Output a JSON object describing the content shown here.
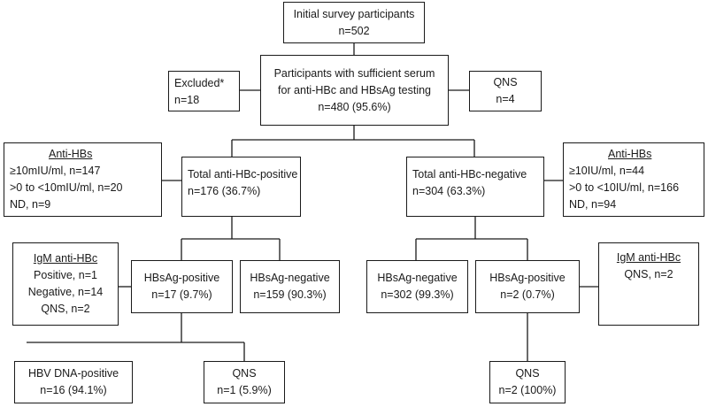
{
  "initial": {
    "title": "Initial survey participants",
    "n": "n=502"
  },
  "excluded": {
    "title": "Excluded*",
    "n": "n=18"
  },
  "sufficient": {
    "line1": "Participants with sufficient serum",
    "line2": "for anti-HBc and HBsAg testing",
    "n": "n=480 (95.6%)"
  },
  "qns_top": {
    "title": "QNS",
    "n": "n=4"
  },
  "antihbs_left": {
    "title": "Anti-HBs",
    "l1": "≥10mIU/ml, n=147",
    "l2": ">0 to <10mIU/ml, n=20",
    "l3": "ND, n=9"
  },
  "hbc_pos": {
    "title": "Total anti-HBc-positive",
    "n": "n=176 (36.7%)"
  },
  "hbc_neg": {
    "title": "Total anti-HBc-negative",
    "n": "n=304 (63.3%)"
  },
  "antihbs_right": {
    "title": "Anti-HBs",
    "l1": "≥10IU/ml, n=44",
    "l2": ">0 to <10IU/ml, n=166",
    "l3": "ND, n=94"
  },
  "igm_left": {
    "title": "IgM anti-HBc",
    "l1": "Positive, n=1",
    "l2": "Negative, n=14",
    "l3": "QNS, n=2"
  },
  "hbsag_pos_left": {
    "title": "HBsAg-positive",
    "n": "n=17 (9.7%)"
  },
  "hbsag_neg_left": {
    "title": "HBsAg-negative",
    "n": "n=159 (90.3%)"
  },
  "hbsag_neg_right": {
    "title": "HBsAg-negative",
    "n": "n=302 (99.3%)"
  },
  "hbsag_pos_right": {
    "title": "HBsAg-positive",
    "n": "n=2 (0.7%)"
  },
  "igm_right": {
    "title": "IgM anti-HBc",
    "l1": "QNS, n=2"
  },
  "dna_pos": {
    "title": "HBV DNA-positive",
    "n": "n=16 (94.1%)"
  },
  "qns_left": {
    "title": "QNS",
    "n": "n=1 (5.9%)"
  },
  "qns_right": {
    "title": "QNS",
    "n": "n=2 (100%)"
  }
}
